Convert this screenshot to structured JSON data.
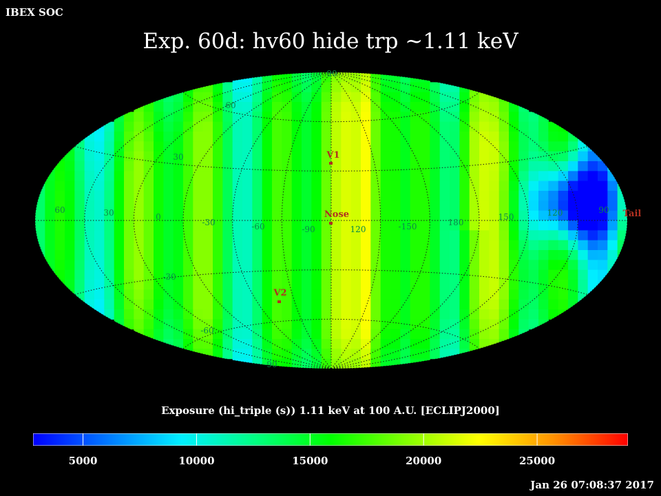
{
  "header": {
    "organization": "IBEX SOC"
  },
  "title": "Exp.   60d: hv60 hide trp ~1.11 keV",
  "map": {
    "projection": "aitoff",
    "frame": "ECLIPJ2000",
    "latitude_labels": [
      "90",
      "60",
      "30",
      "-30",
      "-60",
      "-90"
    ],
    "longitude_labels": [
      "60",
      "30",
      "0",
      "-30",
      "-60",
      "-90",
      "120",
      "-150",
      "180",
      "150",
      "120",
      "90"
    ],
    "markers": [
      {
        "name": "V1",
        "color": "#c0392b"
      },
      {
        "name": "Nose",
        "color": "#c0392b"
      },
      {
        "name": "V2",
        "color": "#c0392b"
      },
      {
        "name": "Tail",
        "color": "#c0392b"
      }
    ],
    "grid_color": "#1a1a1a"
  },
  "colorbar": {
    "title": "Exposure (hi_triple (s))  1.11 keV at 100 A.U. [ECLIPJ2000]",
    "range": [
      2800,
      29000
    ],
    "tick_values": [
      5000,
      10000,
      15000,
      20000,
      25000
    ],
    "tick_labels": [
      "5000",
      "10000",
      "15000",
      "20000",
      "25000"
    ],
    "colormap": [
      "#0000ff",
      "#0078ff",
      "#00f0ff",
      "#00ff80",
      "#00ff00",
      "#80ff00",
      "#ffff00",
      "#ff9000",
      "#ff0000"
    ]
  },
  "footer": {
    "timestamp": "Jan 26 07:08:37 2017"
  }
}
